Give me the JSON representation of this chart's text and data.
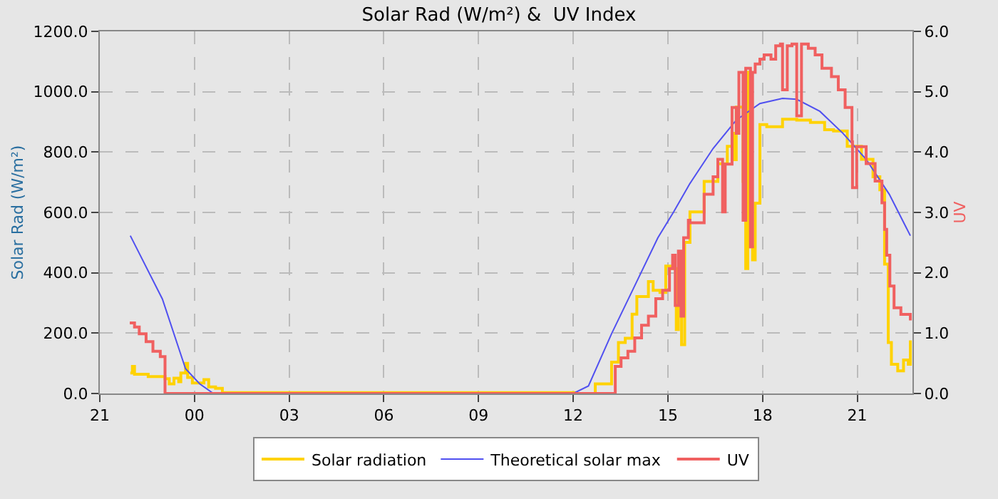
{
  "chart_data": {
    "type": "step",
    "title": "Solar Rad (W/m²) &  UV Index",
    "ylabel": "Solar Rad (W/m²)",
    "y2label": "UV",
    "xlim": [
      "--01-01T21:00",
      "--01-02T22:45"
    ],
    "xticks": [
      {
        "value": "--01-01T21:00",
        "label": "21"
      },
      {
        "value": "--01-02T00:00",
        "label": "00"
      },
      {
        "value": "--01-02T03:00",
        "label": "03"
      },
      {
        "value": "--01-02T06:00",
        "label": "06"
      },
      {
        "value": "--01-02T09:00",
        "label": "09"
      },
      {
        "value": "--01-02T12:00",
        "label": "12"
      },
      {
        "value": "--01-02T15:00",
        "label": "15"
      },
      {
        "value": "--01-02T18:00",
        "label": "18"
      },
      {
        "value": "--01-02T21:00",
        "label": "21"
      }
    ],
    "ylim": [
      0,
      1200
    ],
    "yticks": [
      {
        "value": 0,
        "label": "0.0"
      },
      {
        "value": 200,
        "label": "200.0"
      },
      {
        "value": 400,
        "label": "400.0"
      },
      {
        "value": 600,
        "label": "600.0"
      },
      {
        "value": 800,
        "label": "800.0"
      },
      {
        "value": 1000,
        "label": "1000.0"
      },
      {
        "value": 1200,
        "label": "1200.0"
      }
    ],
    "y2lim": [
      0,
      6
    ],
    "y2ticks": [
      {
        "value": 0,
        "label": "0.0"
      },
      {
        "value": 1,
        "label": "1.0"
      },
      {
        "value": 2,
        "label": "2.0"
      },
      {
        "value": 3,
        "label": "3.0"
      },
      {
        "value": 4,
        "label": "4.0"
      },
      {
        "value": 5,
        "label": "5.0"
      },
      {
        "value": 6,
        "label": "6.0"
      }
    ],
    "grid": true,
    "legend": "bottom",
    "marker": "none",
    "series": [
      {
        "name": "Solar radiation",
        "color": "#ffd200",
        "x": [
          "--01-01T21:58",
          "--01-01T22:02",
          "--01-01T22:06",
          "--01-01T22:32",
          "--01-01T23:04",
          "--01-01T23:12",
          "--01-01T23:21",
          "--01-01T23:30",
          "--01-01T23:34",
          "--01-01T23:43",
          "--01-01T23:47",
          "--01-01T23:56",
          "--01-02T00:18",
          "--01-02T00:27",
          "--01-02T00:40",
          "--01-02T00:53",
          "--01-02T12:02",
          "--01-02T12:42",
          "--01-02T13:13",
          "--01-02T13:26",
          "--01-02T13:39",
          "--01-02T13:52",
          "--01-02T14:01",
          "--01-02T14:23",
          "--01-02T14:32",
          "--01-02T14:45",
          "--01-02T14:56",
          "--01-02T15:07",
          "--01-02T15:16",
          "--01-02T15:20",
          "--01-02T15:26",
          "--01-02T15:32",
          "--01-02T15:42",
          "--01-02T16:09",
          "--01-02T16:35",
          "--01-02T16:53",
          "--01-02T17:02",
          "--01-02T17:06",
          "--01-02T17:10",
          "--01-02T17:23",
          "--01-02T17:28",
          "--01-02T17:32",
          "--01-02T17:37",
          "--01-02T17:41",
          "--01-02T17:46",
          "--01-02T17:50",
          "--01-02T17:55",
          "--01-02T18:08",
          "--01-02T18:38",
          "--01-02T19:05",
          "--01-02T19:31",
          "--01-02T19:58",
          "--01-02T20:15",
          "--01-02T20:41",
          "--01-02T21:08",
          "--01-02T21:30",
          "--01-02T21:43",
          "--01-02T21:52",
          "--01-02T21:59",
          "--01-02T22:05",
          "--01-02T22:17",
          "--01-02T22:28",
          "--01-02T22:37",
          "--01-02T22:41"
        ],
        "values": [
          68,
          90,
          64,
          56,
          49,
          32,
          51,
          39,
          68,
          100,
          53,
          35,
          46,
          22,
          17,
          3,
          0,
          32,
          104,
          169,
          183,
          263,
          321,
          371,
          342,
          335,
          422,
          414,
          212,
          342,
          162,
          501,
          602,
          703,
          761,
          819,
          862,
          775,
          949,
          703,
          414,
          1065,
          486,
          443,
          631,
          631,
          891,
          884,
          909,
          906,
          898,
          874,
          870,
          819,
          776,
          718,
          675,
          429,
          169,
          97,
          75,
          111,
          97,
          176
        ]
      },
      {
        "name": "Theoretical solar max",
        "color": "#5050f0",
        "type": "line",
        "x": [
          "--01-01T21:58",
          "--01-01T22:59",
          "--01-01T23:43",
          "--01-02T00:10",
          "--01-02T00:36",
          "--01-02T12:00",
          "--01-02T12:29",
          "--01-02T13:13",
          "--01-02T13:57",
          "--01-02T14:41",
          "--01-02T15:11",
          "--01-02T15:42",
          "--01-02T16:26",
          "--01-02T17:10",
          "--01-02T17:55",
          "--01-02T18:38",
          "--01-02T19:05",
          "--01-02T19:49",
          "--01-02T20:33",
          "--01-02T21:17",
          "--01-02T22:01",
          "--01-02T22:41"
        ],
        "values": [
          523,
          313,
          82,
          32,
          0,
          0,
          25,
          198,
          357,
          516,
          602,
          696,
          812,
          906,
          961,
          978,
          975,
          935,
          862,
          776,
          660,
          523
        ]
      },
      {
        "name": "UV",
        "color": "#f06060",
        "axis": "y2",
        "x": [
          "--01-01T21:57",
          "--01-01T22:06",
          "--01-01T22:15",
          "--01-01T22:28",
          "--01-01T22:41",
          "--01-01T22:55",
          "--01-01T23:04",
          "--01-02T13:20",
          "--01-02T13:31",
          "--01-02T13:44",
          "--01-02T13:57",
          "--01-02T14:10",
          "--01-02T14:23",
          "--01-02T14:37",
          "--01-02T14:50",
          "--01-02T15:03",
          "--01-02T15:09",
          "--01-02T15:14",
          "--01-02T15:20",
          "--01-02T15:25",
          "--01-02T15:30",
          "--01-02T15:39",
          "--01-02T15:42",
          "--01-02T16:09",
          "--01-02T16:26",
          "--01-02T16:35",
          "--01-02T16:44",
          "--01-02T16:49",
          "--01-02T17:02",
          "--01-02T17:10",
          "--01-02T17:15",
          "--01-02T17:23",
          "--01-02T17:28",
          "--01-02T17:37",
          "--01-02T17:41",
          "--01-02T17:46",
          "--01-02T17:55",
          "--01-02T18:03",
          "--01-02T18:16",
          "--01-02T18:25",
          "--01-02T18:34",
          "--01-02T18:38",
          "--01-02T18:47",
          "--01-02T18:56",
          "--01-02T19:05",
          "--01-02T19:14",
          "--01-02T19:27",
          "--01-02T19:40",
          "--01-02T19:53",
          "--01-02T20:11",
          "--01-02T20:24",
          "--01-02T20:37",
          "--01-02T20:50",
          "--01-02T20:51",
          "--01-02T20:59",
          "--01-02T21:17",
          "--01-02T21:34",
          "--01-02T21:47",
          "--01-02T21:52",
          "--01-02T21:56",
          "--01-02T22:02",
          "--01-02T22:10",
          "--01-02T22:23",
          "--01-02T22:41"
        ],
        "values": [
          1.17,
          1.1,
          0.99,
          0.86,
          0.7,
          0.61,
          0,
          0.45,
          0.59,
          0.7,
          0.92,
          1.13,
          1.28,
          1.57,
          1.71,
          2.07,
          2.29,
          1.46,
          2.36,
          1.28,
          2.58,
          2.87,
          2.83,
          3.3,
          3.59,
          3.88,
          3.01,
          3.8,
          4.74,
          4.31,
          5.32,
          2.87,
          5.39,
          2.43,
          5.32,
          5.46,
          5.54,
          5.61,
          5.54,
          5.76,
          5.79,
          5.03,
          5.76,
          5.79,
          4.6,
          5.79,
          5.72,
          5.61,
          5.39,
          5.25,
          5.03,
          4.74,
          4.17,
          3.41,
          4.09,
          3.81,
          3.52,
          3.16,
          2.72,
          2.29,
          1.78,
          1.42,
          1.31,
          1.21
        ]
      }
    ]
  }
}
